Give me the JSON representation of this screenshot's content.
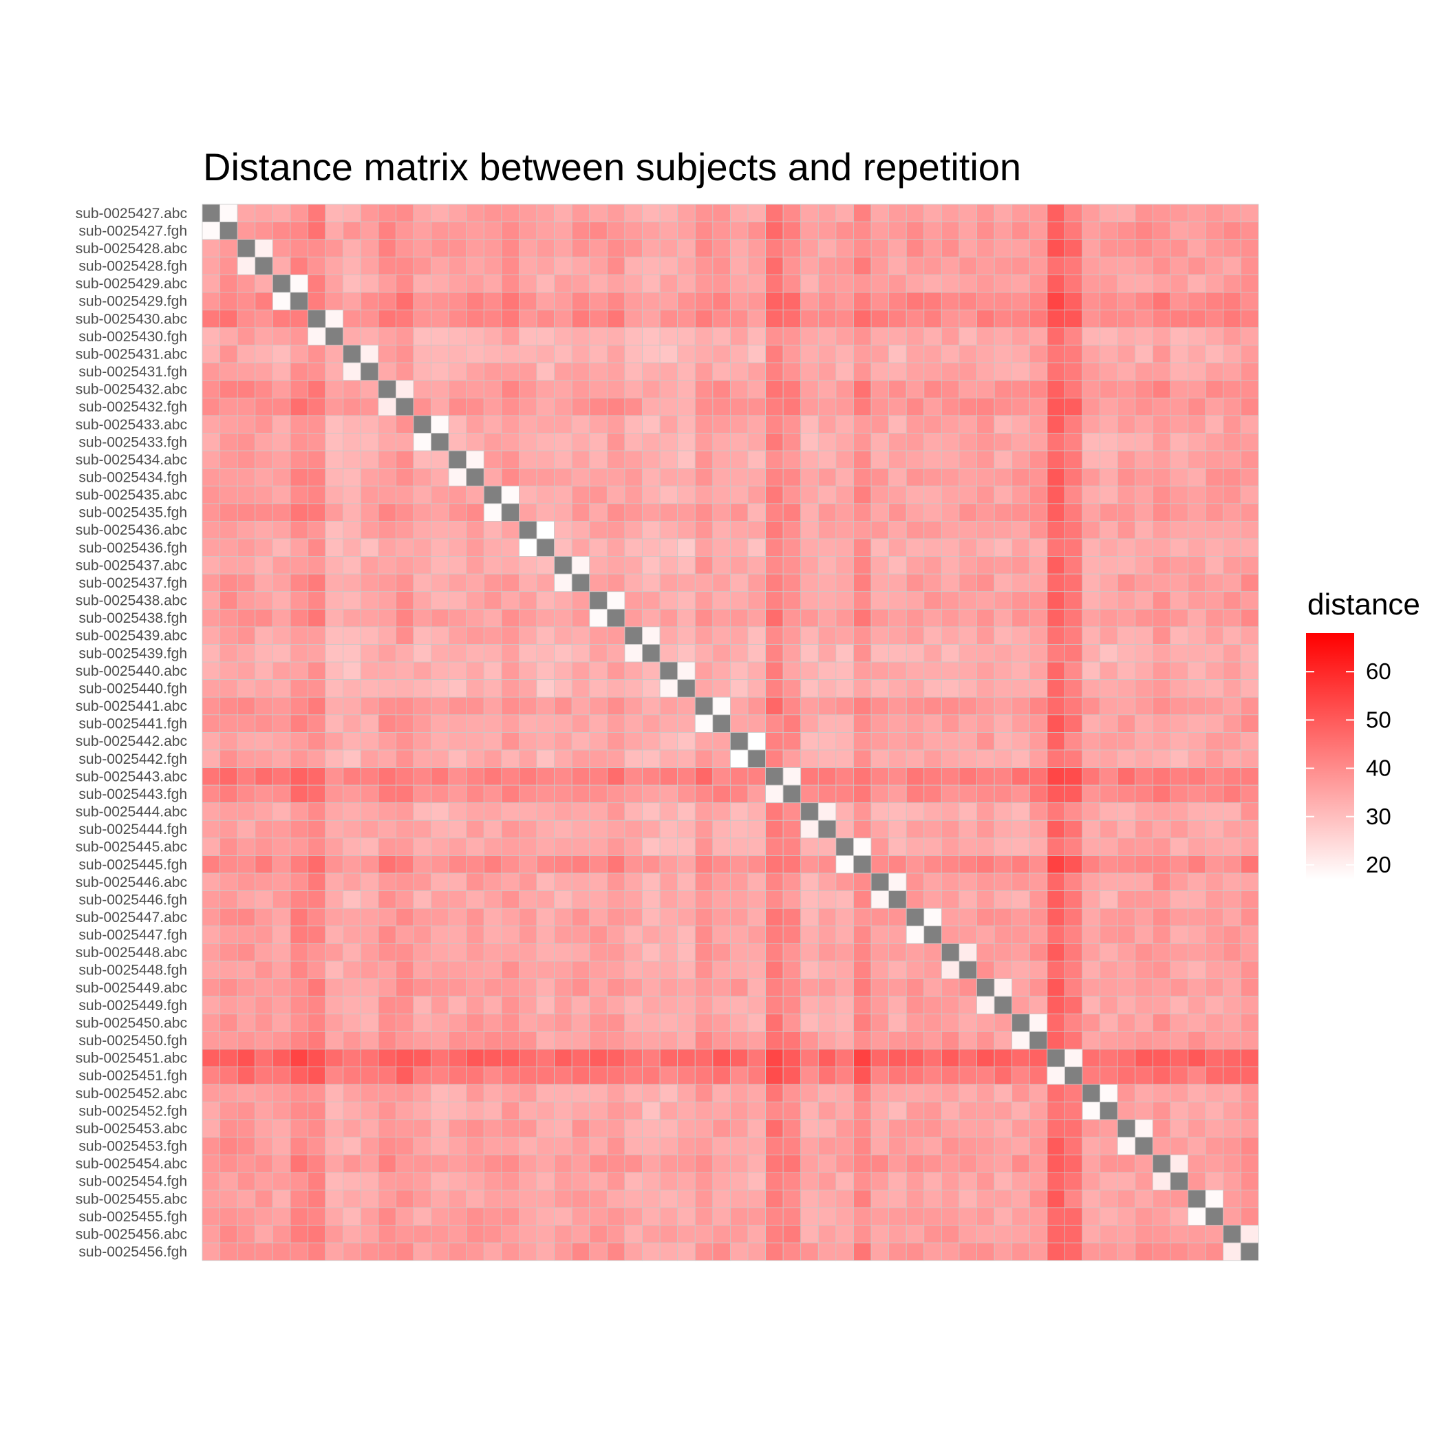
{
  "chart_data": {
    "type": "heatmap",
    "title": "Distance matrix between subjects and repetition",
    "xlabel": "",
    "ylabel": "",
    "labels": [
      "sub-0025427.abc",
      "sub-0025427.fgh",
      "sub-0025428.abc",
      "sub-0025428.fgh",
      "sub-0025429.abc",
      "sub-0025429.fgh",
      "sub-0025430.abc",
      "sub-0025430.fgh",
      "sub-0025431.abc",
      "sub-0025431.fgh",
      "sub-0025432.abc",
      "sub-0025432.fgh",
      "sub-0025433.abc",
      "sub-0025433.fgh",
      "sub-0025434.abc",
      "sub-0025434.fgh",
      "sub-0025435.abc",
      "sub-0025435.fgh",
      "sub-0025436.abc",
      "sub-0025436.fgh",
      "sub-0025437.abc",
      "sub-0025437.fgh",
      "sub-0025438.abc",
      "sub-0025438.fgh",
      "sub-0025439.abc",
      "sub-0025439.fgh",
      "sub-0025440.abc",
      "sub-0025440.fgh",
      "sub-0025441.abc",
      "sub-0025441.fgh",
      "sub-0025442.abc",
      "sub-0025442.fgh",
      "sub-0025443.abc",
      "sub-0025443.fgh",
      "sub-0025444.abc",
      "sub-0025444.fgh",
      "sub-0025445.abc",
      "sub-0025445.fgh",
      "sub-0025446.abc",
      "sub-0025446.fgh",
      "sub-0025447.abc",
      "sub-0025447.fgh",
      "sub-0025448.abc",
      "sub-0025448.fgh",
      "sub-0025449.abc",
      "sub-0025449.fgh",
      "sub-0025450.abc",
      "sub-0025450.fgh",
      "sub-0025451.abc",
      "sub-0025451.fgh",
      "sub-0025452.abc",
      "sub-0025452.fgh",
      "sub-0025453.abc",
      "sub-0025453.fgh",
      "sub-0025454.abc",
      "sub-0025454.fgh",
      "sub-0025455.abc",
      "sub-0025455.fgh",
      "sub-0025456.abc",
      "sub-0025456.fgh"
    ],
    "subject_base_distance": [
      36,
      41,
      39,
      37,
      36,
      45,
      46,
      32,
      31,
      34,
      40,
      41,
      34,
      33,
      34,
      37,
      35,
      38,
      34,
      31,
      34,
      36,
      36,
      38,
      33,
      30,
      31,
      30,
      39,
      36,
      34,
      32,
      50,
      44,
      32,
      34,
      34,
      45,
      36,
      34,
      37,
      36,
      36,
      35,
      38,
      35,
      36,
      39,
      60,
      52,
      35,
      34,
      37,
      37,
      40,
      35,
      35,
      37,
      37,
      40
    ],
    "pair_distance": [
      18,
      20,
      18,
      19,
      20,
      21,
      18,
      19,
      18,
      17,
      19,
      18,
      19,
      19,
      18,
      17,
      19,
      20,
      18,
      19,
      18,
      21,
      20,
      19,
      19,
      18,
      19,
      21,
      18,
      21
    ],
    "diagonal": "missing",
    "value_range": [
      17,
      68
    ],
    "colorscale": {
      "low": "#ffffff",
      "high": "#ff0000"
    },
    "missing_color": "#808080",
    "legend": {
      "title": "distance",
      "ticks": [
        20,
        30,
        40,
        50,
        60
      ],
      "position": "right"
    }
  }
}
